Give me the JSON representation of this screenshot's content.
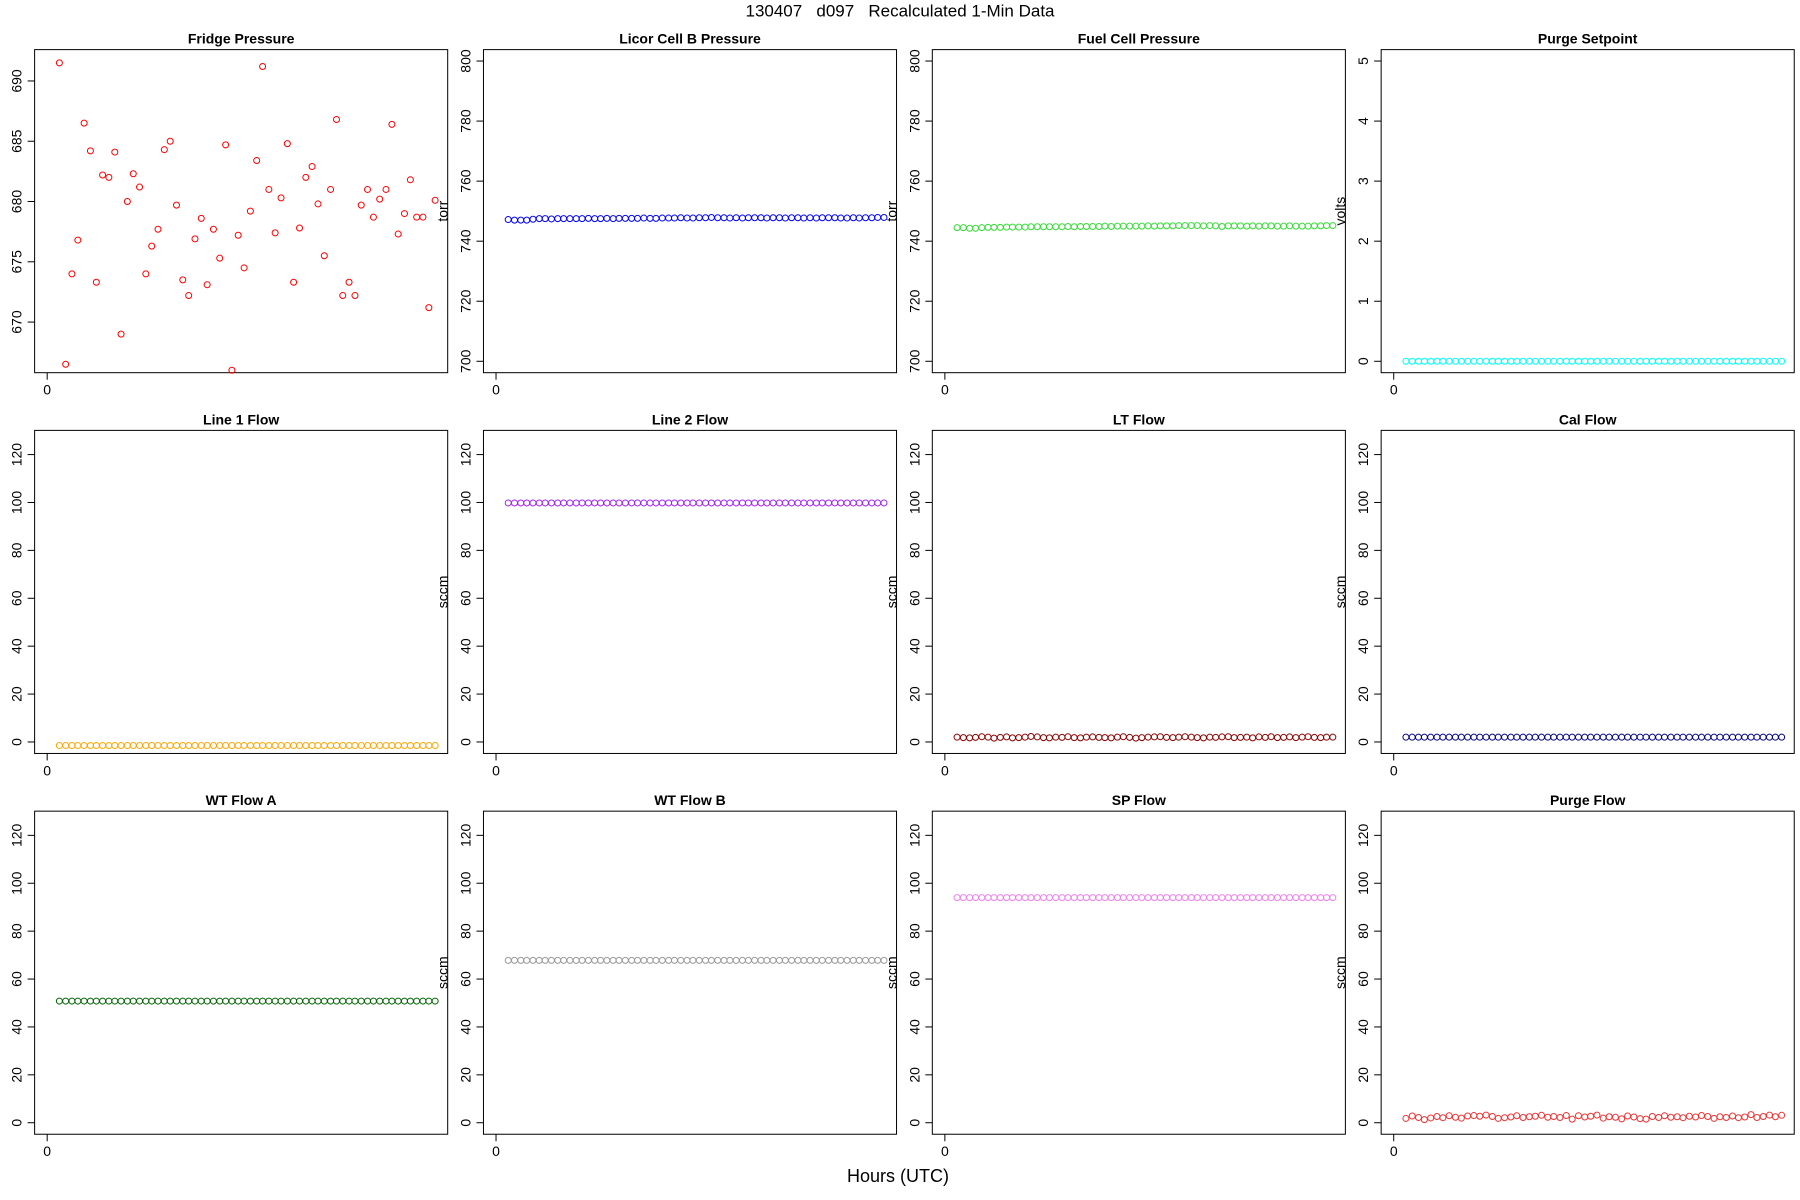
{
  "chart_data": {
    "type": "scatter-panels",
    "title": "130407   d097   Recalculated 1-Min Data",
    "x_label": "Hours (UTC)",
    "xlim": [
      -0.034,
      1.084
    ],
    "xticks": [
      0
    ],
    "x": [
      0.033,
      0.05,
      0.067,
      0.083,
      0.1,
      0.117,
      0.133,
      0.15,
      0.167,
      0.183,
      0.2,
      0.217,
      0.233,
      0.25,
      0.267,
      0.283,
      0.3,
      0.317,
      0.333,
      0.35,
      0.367,
      0.383,
      0.4,
      0.417,
      0.433,
      0.45,
      0.467,
      0.483,
      0.5,
      0.517,
      0.533,
      0.55,
      0.567,
      0.583,
      0.6,
      0.617,
      0.633,
      0.65,
      0.667,
      0.683,
      0.7,
      0.717,
      0.733,
      0.75,
      0.767,
      0.783,
      0.8,
      0.817,
      0.833,
      0.85,
      0.867,
      0.883,
      0.9,
      0.917,
      0.933,
      0.95,
      0.967,
      0.983,
      1.0,
      1.017,
      1.033,
      1.05
    ],
    "panels": [
      {
        "title": "Fridge Pressure",
        "y_label": "torr",
        "color": "#ff0000",
        "ylim": [
          665.8,
          692.6
        ],
        "yticks": [
          670,
          675,
          680,
          685,
          690
        ],
        "values": [
          691.5,
          666.5,
          674,
          676.8,
          686.5,
          684.2,
          673.3,
          682.2,
          682,
          684.1,
          669,
          680,
          682.3,
          681.2,
          674,
          676.3,
          677.7,
          684.3,
          685,
          679.7,
          673.5,
          672.2,
          676.9,
          678.6,
          673.1,
          677.7,
          675.3,
          684.7,
          666,
          677.2,
          674.5,
          679.2,
          683.4,
          691.2,
          681,
          677.4,
          680.3,
          684.8,
          673.3,
          677.8,
          682,
          682.9,
          679.8,
          675.5,
          681,
          686.8,
          672.2,
          673.3,
          672.2,
          679.7,
          681,
          678.7,
          680.2,
          681,
          686.4,
          677.3,
          679,
          681.8,
          678.7,
          678.7,
          671.2,
          680.1
        ]
      },
      {
        "title": "Licor Cell B Pressure",
        "y_label": "torr",
        "color": "#0000ff",
        "ylim": [
          696.2,
          803.8
        ],
        "yticks": [
          700,
          720,
          740,
          760,
          780,
          800
        ],
        "values": [
          747.2,
          747,
          747,
          747,
          747.3,
          747.5,
          747.5,
          747.4,
          747.5,
          747.5,
          747.5,
          747.5,
          747.5,
          747.6,
          747.5,
          747.5,
          747.6,
          747.5,
          747.6,
          747.6,
          747.6,
          747.6,
          747.7,
          747.6,
          747.6,
          747.7,
          747.7,
          747.7,
          747.8,
          747.7,
          747.7,
          747.8,
          747.8,
          747.9,
          747.8,
          747.8,
          747.7,
          747.8,
          747.7,
          747.8,
          747.8,
          747.8,
          747.7,
          747.8,
          747.8,
          747.7,
          747.8,
          747.8,
          747.7,
          747.8,
          747.7,
          747.8,
          747.8,
          747.8,
          747.7,
          747.7,
          747.8,
          747.7,
          747.8,
          747.8,
          747.9,
          747.9
        ]
      },
      {
        "title": "Fuel Cell Pressure",
        "y_label": "torr",
        "color": "#33dd33",
        "ylim": [
          696.2,
          803.8
        ],
        "yticks": [
          700,
          720,
          740,
          760,
          780,
          800
        ],
        "values": [
          744.5,
          744.5,
          744.3,
          744.3,
          744.5,
          744.6,
          744.6,
          744.6,
          744.7,
          744.7,
          744.7,
          744.7,
          744.8,
          744.8,
          744.8,
          744.8,
          744.8,
          744.8,
          744.9,
          744.8,
          744.9,
          744.9,
          744.9,
          744.9,
          745,
          744.9,
          745,
          745,
          745,
          745,
          745,
          745.1,
          745,
          745.1,
          745.1,
          745.1,
          745.2,
          745.2,
          745.2,
          745.2,
          745.1,
          745.2,
          745.1,
          744.9,
          745.1,
          745.1,
          745.1,
          745,
          745.1,
          745,
          745.1,
          745.1,
          745,
          745,
          745.1,
          745,
          745,
          745,
          745.1,
          745.1,
          745.2,
          745.2
        ]
      },
      {
        "title": "Purge Setpoint",
        "y_label": "volts",
        "color": "#00ffff",
        "ylim": [
          -0.19,
          5.19
        ],
        "yticks": [
          0,
          1,
          2,
          3,
          4,
          5
        ],
        "values": [
          0,
          0,
          0,
          0,
          0,
          0,
          0,
          0,
          0,
          0,
          0,
          0,
          0,
          0,
          0,
          0,
          0,
          0,
          0,
          0,
          0,
          0,
          0,
          0,
          0,
          0,
          0,
          0,
          0,
          0,
          0,
          0,
          0,
          0,
          0,
          0,
          0,
          0,
          0,
          0,
          0,
          0,
          0,
          0,
          0,
          0,
          0,
          0,
          0,
          0,
          0,
          0,
          0,
          0,
          0,
          0,
          0,
          0,
          0,
          0,
          0,
          0
        ]
      },
      {
        "title": "Line 1 Flow",
        "y_label": "sccm",
        "color": "#ffa500",
        "ylim": [
          -4.8,
          130.1
        ],
        "yticks": [
          0,
          20,
          40,
          60,
          80,
          100,
          120
        ],
        "values": [
          -1.5,
          -1.5,
          -1.5,
          -1.5,
          -1.5,
          -1.5,
          -1.5,
          -1.5,
          -1.5,
          -1.5,
          -1.5,
          -1.5,
          -1.5,
          -1.5,
          -1.5,
          -1.5,
          -1.5,
          -1.5,
          -1.5,
          -1.5,
          -1.5,
          -1.5,
          -1.5,
          -1.5,
          -1.5,
          -1.5,
          -1.5,
          -1.5,
          -1.5,
          -1.5,
          -1.5,
          -1.5,
          -1.5,
          -1.5,
          -1.5,
          -1.5,
          -1.5,
          -1.5,
          -1.5,
          -1.5,
          -1.5,
          -1.5,
          -1.5,
          -1.5,
          -1.5,
          -1.5,
          -1.5,
          -1.5,
          -1.5,
          -1.5,
          -1.5,
          -1.5,
          -1.5,
          -1.5,
          -1.5,
          -1.5,
          -1.5,
          -1.5,
          -1.5,
          -1.5,
          -1.5,
          -1.5
        ]
      },
      {
        "title": "Line 2 Flow",
        "y_label": "sccm",
        "color": "#a020f0",
        "ylim": [
          -4.8,
          130.1
        ],
        "yticks": [
          0,
          20,
          40,
          60,
          80,
          100,
          120
        ],
        "values": [
          99.8,
          99.8,
          99.8,
          99.8,
          99.8,
          99.8,
          99.8,
          99.8,
          99.8,
          99.8,
          99.8,
          99.8,
          99.8,
          99.8,
          99.8,
          99.8,
          99.8,
          99.8,
          99.8,
          99.8,
          99.8,
          99.8,
          99.8,
          99.8,
          99.8,
          99.8,
          99.8,
          99.8,
          99.8,
          99.8,
          99.8,
          99.8,
          99.8,
          99.8,
          99.8,
          99.8,
          99.8,
          99.8,
          99.8,
          99.8,
          99.8,
          99.8,
          99.8,
          99.8,
          99.8,
          99.8,
          99.8,
          99.8,
          99.8,
          99.8,
          99.8,
          99.8,
          99.8,
          99.8,
          99.8,
          99.8,
          99.8,
          99.8,
          99.8,
          99.8,
          99.8,
          99.8
        ]
      },
      {
        "title": "LT Flow",
        "y_label": "sccm",
        "color": "#8b0000",
        "ylim": [
          -4.8,
          130.1
        ],
        "yticks": [
          0,
          20,
          40,
          60,
          80,
          100,
          120
        ],
        "values": [
          2,
          1.8,
          1.7,
          1.9,
          2.2,
          2,
          1.6,
          1.9,
          2.1,
          1.7,
          1.8,
          2,
          2.3,
          2.1,
          1.8,
          1.7,
          2,
          1.9,
          2.2,
          1.8,
          1.7,
          2,
          2.1,
          1.9,
          1.8,
          1.7,
          2,
          2.2,
          1.9,
          1.6,
          1.8,
          2,
          2.1,
          2.2,
          1.9,
          1.8,
          2,
          2.2,
          2,
          1.8,
          1.7,
          2,
          1.9,
          2.1,
          2.2,
          1.8,
          1.9,
          2,
          1.7,
          2.1,
          1.9,
          2.2,
          1.8,
          1.9,
          2.1,
          1.8,
          2,
          2.2,
          1.9,
          1.8,
          2,
          2
        ]
      },
      {
        "title": "Cal Flow",
        "y_label": "sccm",
        "color": "#000080",
        "ylim": [
          -4.8,
          130.1
        ],
        "yticks": [
          0,
          20,
          40,
          60,
          80,
          100,
          120
        ],
        "values": [
          2,
          2,
          2,
          2,
          2,
          2,
          2,
          2,
          2,
          2,
          2,
          2,
          2,
          2,
          2,
          2,
          2,
          2,
          2,
          2,
          2,
          2,
          2,
          2,
          2,
          2,
          2,
          2,
          2,
          2,
          2,
          2,
          2,
          2,
          2,
          2,
          2,
          2,
          2,
          2,
          2,
          2,
          2,
          2,
          2,
          2,
          2,
          2,
          2,
          2,
          2,
          2,
          2,
          2,
          2,
          2,
          2,
          2,
          2,
          2,
          2,
          2
        ]
      },
      {
        "title": "WT Flow A",
        "y_label": "sccm",
        "color": "#006400",
        "ylim": [
          -4.8,
          130.1
        ],
        "yticks": [
          0,
          20,
          40,
          60,
          80,
          100,
          120
        ],
        "values": [
          50.8,
          50.8,
          50.8,
          50.8,
          50.8,
          50.8,
          50.8,
          50.8,
          50.8,
          50.8,
          50.8,
          50.8,
          50.8,
          50.8,
          50.8,
          50.8,
          50.8,
          50.8,
          50.8,
          50.8,
          50.8,
          50.8,
          50.8,
          50.8,
          50.8,
          50.8,
          50.8,
          50.8,
          50.8,
          50.8,
          50.8,
          50.8,
          50.8,
          50.8,
          50.8,
          50.8,
          50.8,
          50.8,
          50.8,
          50.8,
          50.8,
          50.8,
          50.8,
          50.8,
          50.8,
          50.8,
          50.8,
          50.8,
          50.8,
          50.8,
          50.8,
          50.8,
          50.8,
          50.8,
          50.8,
          50.8,
          50.8,
          50.8,
          50.8,
          50.8,
          50.8,
          50.8
        ]
      },
      {
        "title": "WT Flow B",
        "y_label": "sccm",
        "color": "#999999",
        "ylim": [
          -4.8,
          130.1
        ],
        "yticks": [
          0,
          20,
          40,
          60,
          80,
          100,
          120
        ],
        "values": [
          67.8,
          67.8,
          67.8,
          67.8,
          67.8,
          67.8,
          67.8,
          67.8,
          67.8,
          67.8,
          67.8,
          67.8,
          67.8,
          67.8,
          67.8,
          67.8,
          67.8,
          67.8,
          67.8,
          67.8,
          67.8,
          67.8,
          67.8,
          67.8,
          67.8,
          67.8,
          67.8,
          67.8,
          67.8,
          67.8,
          67.8,
          67.8,
          67.8,
          67.8,
          67.8,
          67.8,
          67.8,
          67.8,
          67.8,
          67.8,
          67.8,
          67.8,
          67.8,
          67.8,
          67.8,
          67.8,
          67.8,
          67.8,
          67.8,
          67.8,
          67.8,
          67.8,
          67.8,
          67.8,
          67.8,
          67.8,
          67.8,
          67.8,
          67.8,
          67.8,
          67.8,
          67.8
        ]
      },
      {
        "title": "SP Flow",
        "y_label": "sccm",
        "color": "#ee82ee",
        "ylim": [
          -4.8,
          130.1
        ],
        "yticks": [
          0,
          20,
          40,
          60,
          80,
          100,
          120
        ],
        "values": [
          94,
          94,
          94,
          94,
          94,
          94,
          94,
          94,
          94,
          94,
          94,
          94,
          94,
          94,
          94,
          94,
          94,
          94,
          94,
          94,
          94,
          94,
          94,
          94,
          94,
          94,
          94,
          94,
          94,
          94,
          94,
          94,
          94,
          94,
          94,
          94,
          94,
          94,
          94,
          94,
          94,
          94,
          94,
          94,
          94,
          94,
          94,
          94,
          94,
          94,
          94,
          94,
          94,
          94,
          94,
          94,
          94,
          94,
          94,
          94,
          94,
          94
        ]
      },
      {
        "title": "Purge Flow",
        "y_label": "sccm",
        "color": "#ee3333",
        "ylim": [
          -4.8,
          130.1
        ],
        "yticks": [
          0,
          20,
          40,
          60,
          80,
          100,
          120
        ],
        "values": [
          1.8,
          2.8,
          2.2,
          1.3,
          2,
          2.6,
          2.1,
          2.9,
          2.3,
          1.9,
          2.8,
          3,
          2.7,
          3.2,
          2.6,
          1.8,
          2.1,
          2.4,
          2.9,
          2.2,
          2.5,
          2.7,
          3.1,
          2.3,
          2.6,
          2.2,
          3,
          1.5,
          2.9,
          2.4,
          2.7,
          3.2,
          1.9,
          2.5,
          2.3,
          1.6,
          2.8,
          2.4,
          1.7,
          1.5,
          2.6,
          2.2,
          2.9,
          2.3,
          2.5,
          2.1,
          2.7,
          2.4,
          3,
          2.6,
          1.8,
          2.5,
          2.2,
          2.8,
          2.1,
          2.4,
          3.4,
          2.2,
          2.6,
          3.2,
          2.5,
          3.1
        ]
      }
    ]
  }
}
